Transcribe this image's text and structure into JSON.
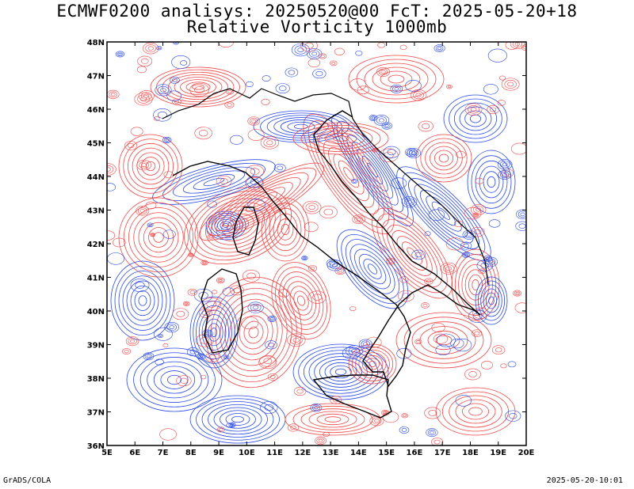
{
  "title": {
    "line1": "ECMWF0200 analisys: 20250520@00 FcT: 2025-05-20+18",
    "line2": "Relative Vorticity 1000mb"
  },
  "map": {
    "lon_range": [
      5,
      20
    ],
    "lat_range": [
      36,
      48
    ],
    "x_tick_labels": [
      "5E",
      "6E",
      "7E",
      "8E",
      "9E",
      "10E",
      "11E",
      "12E",
      "13E",
      "14E",
      "15E",
      "16E",
      "17E",
      "18E",
      "19E",
      "20E"
    ],
    "y_tick_labels": [
      "36N",
      "37N",
      "38N",
      "39N",
      "40N",
      "41N",
      "42N",
      "43N",
      "44N",
      "45N",
      "46N",
      "47N",
      "48N"
    ],
    "colors": {
      "positive_contours": "#f04646",
      "negative_contours": "#2848e6",
      "coastline": "#000000",
      "frame": "#000000"
    }
  },
  "footer": {
    "left": "GrADS/COLA",
    "right": "2025-05-20-10:01"
  }
}
